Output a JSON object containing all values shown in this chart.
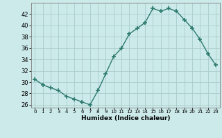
{
  "x": [
    0,
    1,
    2,
    3,
    4,
    5,
    6,
    7,
    8,
    9,
    10,
    11,
    12,
    13,
    14,
    15,
    16,
    17,
    18,
    19,
    20,
    21,
    22,
    23
  ],
  "y": [
    30.5,
    29.5,
    29.0,
    28.5,
    27.5,
    27.0,
    26.5,
    26.0,
    28.5,
    31.5,
    34.5,
    36.0,
    38.5,
    39.5,
    40.5,
    43.0,
    42.5,
    43.0,
    42.5,
    41.0,
    39.5,
    37.5,
    35.0,
    33.0
  ],
  "xlabel": "Humidex (Indice chaleur)",
  "ylim": [
    25.5,
    44
  ],
  "xlim": [
    -0.5,
    23.5
  ],
  "yticks": [
    26,
    28,
    30,
    32,
    34,
    36,
    38,
    40,
    42
  ],
  "xtick_labels": [
    "0",
    "1",
    "2",
    "3",
    "4",
    "5",
    "6",
    "7",
    "8",
    "9",
    "10",
    "11",
    "12",
    "13",
    "14",
    "15",
    "16",
    "17",
    "18",
    "19",
    "20",
    "21",
    "22",
    "23"
  ],
  "line_color": "#2d7a6e",
  "bg_color": "#cceaea",
  "grid_color": "#aacccc",
  "marker": "+",
  "marker_size": 4,
  "linewidth": 1.0,
  "xlabel_fontsize": 6.5,
  "ytick_fontsize": 6,
  "xtick_fontsize": 5
}
